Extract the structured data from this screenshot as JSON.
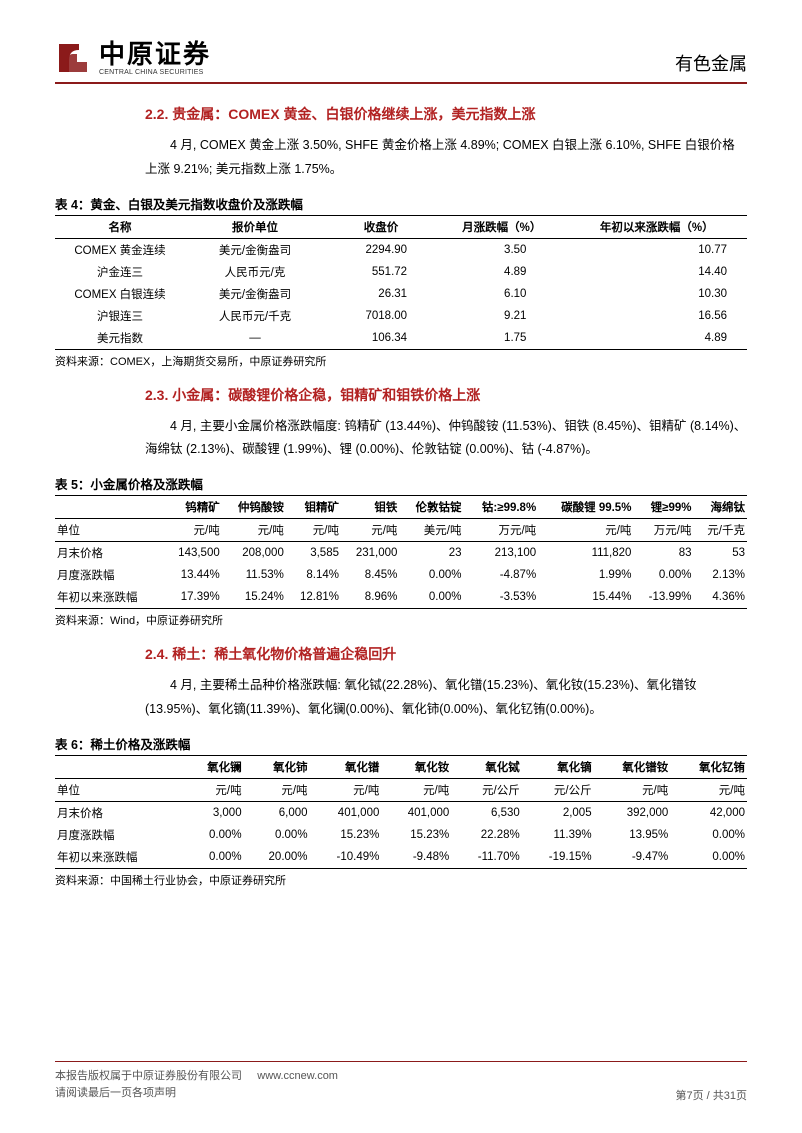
{
  "header": {
    "logo_cn": "中原证券",
    "logo_en": "CENTRAL CHINA SECURITIES",
    "category": "有色金属",
    "logo_color": "#8b1a1a",
    "divider_color": "#8b1a1a"
  },
  "section22": {
    "title": "2.2. 贵金属：COMEX 黄金、白银价格继续上涨，美元指数上涨",
    "para": "4 月, COMEX 黄金上涨 3.50%, SHFE 黄金价格上涨 4.89%; COMEX 白银上涨 6.10%, SHFE 白银价格上涨 9.21%; 美元指数上涨 1.75%。"
  },
  "table4": {
    "caption": "表 4：黄金、白银及美元指数收盘价及涨跌幅",
    "cols": [
      "名称",
      "报价单位",
      "收盘价",
      "月涨跌幅（%）",
      "年初以来涨跌幅（%）"
    ],
    "rows": [
      [
        "COMEX 黄金连续",
        "美元/金衡盎司",
        "2294.90",
        "3.50",
        "10.77"
      ],
      [
        "沪金连三",
        "人民币元/克",
        "551.72",
        "4.89",
        "14.40"
      ],
      [
        "COMEX 白银连续",
        "美元/金衡盎司",
        "26.31",
        "6.10",
        "10.30"
      ],
      [
        "沪银连三",
        "人民币元/千克",
        "7018.00",
        "9.21",
        "16.56"
      ],
      [
        "美元指数",
        "—",
        "106.34",
        "1.75",
        "4.89"
      ]
    ],
    "source": "资料来源：COMEX，上海期货交易所，中原证券研究所"
  },
  "section23": {
    "title": "2.3. 小金属：碳酸锂价格企稳，钼精矿和钼铁价格上涨",
    "para": "4 月, 主要小金属价格涨跌幅度: 钨精矿 (13.44%)、仲钨酸铵 (11.53%)、钼铁 (8.45%)、钼精矿 (8.14%)、海绵钛 (2.13%)、碳酸锂 (1.99%)、锂 (0.00%)、伦敦钴锭 (0.00%)、钴 (-4.87%)。"
  },
  "table5": {
    "caption": "表 5：小金属价格及涨跌幅",
    "cols": [
      "",
      "钨精矿",
      "仲钨酸铵",
      "钼精矿",
      "钼铁",
      "伦敦钴锭",
      "钴:≥99.8%",
      "碳酸锂 99.5%",
      "锂≥99%",
      "海绵钛"
    ],
    "units": [
      "单位",
      "元/吨",
      "元/吨",
      "元/吨",
      "元/吨",
      "美元/吨",
      "万元/吨",
      "元/吨",
      "万元/吨",
      "元/千克"
    ],
    "rows": [
      [
        "月末价格",
        "143,500",
        "208,000",
        "3,585",
        "231,000",
        "23",
        "213,100",
        "111,820",
        "83",
        "53"
      ],
      [
        "月度涨跌幅",
        "13.44%",
        "11.53%",
        "8.14%",
        "8.45%",
        "0.00%",
        "-4.87%",
        "1.99%",
        "0.00%",
        "2.13%"
      ],
      [
        "年初以来涨跌幅",
        "17.39%",
        "15.24%",
        "12.81%",
        "8.96%",
        "0.00%",
        "-3.53%",
        "15.44%",
        "-13.99%",
        "4.36%"
      ]
    ],
    "source": "资料来源：Wind，中原证券研究所"
  },
  "section24": {
    "title": "2.4. 稀土：稀土氧化物价格普遍企稳回升",
    "para": "4 月, 主要稀土品种价格涨跌幅: 氧化铽(22.28%)、氧化镨(15.23%)、氧化钕(15.23%)、氧化镨钕(13.95%)、氧化镝(11.39%)、氧化镧(0.00%)、氧化铈(0.00%)、氧化钇铕(0.00%)。"
  },
  "table6": {
    "caption": "表 6：稀土价格及涨跌幅",
    "cols": [
      "",
      "氧化镧",
      "氧化铈",
      "氧化镨",
      "氧化钕",
      "氧化铽",
      "氧化镝",
      "氧化镨钕",
      "氧化钇铕"
    ],
    "units": [
      "单位",
      "元/吨",
      "元/吨",
      "元/吨",
      "元/吨",
      "元/公斤",
      "元/公斤",
      "元/吨",
      "元/吨"
    ],
    "rows": [
      [
        "月末价格",
        "3,000",
        "6,000",
        "401,000",
        "401,000",
        "6,530",
        "2,005",
        "392,000",
        "42,000"
      ],
      [
        "月度涨跌幅",
        "0.00%",
        "0.00%",
        "15.23%",
        "15.23%",
        "22.28%",
        "11.39%",
        "13.95%",
        "0.00%"
      ],
      [
        "年初以来涨跌幅",
        "0.00%",
        "20.00%",
        "-10.49%",
        "-9.48%",
        "-11.70%",
        "-19.15%",
        "-9.47%",
        "0.00%"
      ]
    ],
    "source": "资料来源：中国稀土行业协会，中原证券研究所"
  },
  "footer": {
    "copyright": "本报告版权属于中原证券股份有限公司",
    "url": "www.ccnew.com",
    "disclaimer": "请阅读最后一页各项声明",
    "page": "第7页  /  共31页"
  },
  "style": {
    "title_color": "#b22222",
    "text_color": "#000000",
    "border_color": "#000000"
  }
}
